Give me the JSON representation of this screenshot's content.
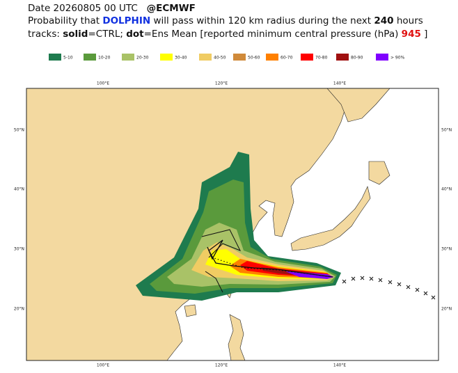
{
  "header": {
    "line1": {
      "date": "Date 20260805 00 UTC",
      "source": "@ECMWF"
    },
    "line2": [
      "Probability that ",
      "DOLPHIN",
      " will pass within 120 km radius during the next ",
      "240",
      " hours"
    ],
    "line3": [
      "tracks: ",
      "solid",
      "=CTRL; ",
      "dot",
      "=Ens Mean [reported minimum central pressure (hPa) ",
      "945",
      " ]"
    ]
  },
  "legend": [
    {
      "label": "5-10",
      "color": "#1e7b4e"
    },
    {
      "label": "10-20",
      "color": "#5a9a3c"
    },
    {
      "label": "20-30",
      "color": "#a9c267"
    },
    {
      "label": "30-40",
      "color": "#ffff00"
    },
    {
      "label": "40-50",
      "color": "#f0cc63"
    },
    {
      "label": "50-60",
      "color": "#d08a3a"
    },
    {
      "label": "60-70",
      "color": "#ff8000"
    },
    {
      "label": "70-80",
      "color": "#ff0000"
    },
    {
      "label": "80-90",
      "color": "#a01010"
    },
    {
      "label": "> 90%",
      "color": "#8000ff"
    }
  ],
  "map": {
    "lon_labels": [
      "100°E",
      "120°E",
      "140°E"
    ],
    "lat_labels": [
      "20°N",
      "30°N",
      "40°N",
      "50°N"
    ]
  }
}
